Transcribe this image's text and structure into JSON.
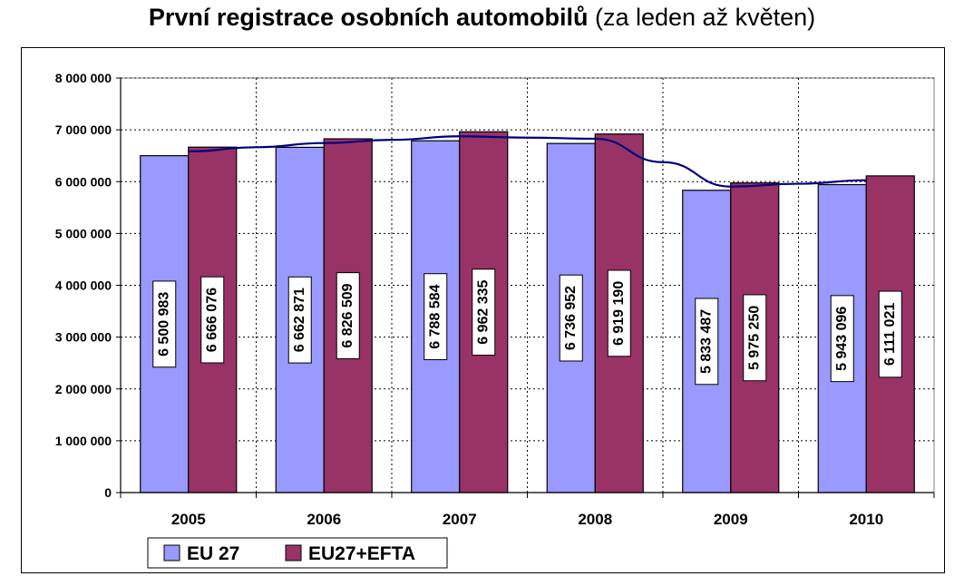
{
  "title_bold": "První registrace osobních automobilů",
  "title_rest": "(za leden až květen)",
  "chart_data": {
    "type": "bar",
    "categories": [
      "2005",
      "2006",
      "2007",
      "2008",
      "2009",
      "2010"
    ],
    "series": [
      {
        "name": "EU 27",
        "color": "#9999ff",
        "values": [
          6500983,
          6662871,
          6788584,
          6736952,
          5833487,
          5943096
        ],
        "labels": [
          "6 500 983",
          "6 662 871",
          "6 788 584",
          "6 736 952",
          "5 833 487",
          "5 943 096"
        ]
      },
      {
        "name": "EU27+EFTA",
        "color": "#993366",
        "values": [
          6666076,
          6826509,
          6962335,
          6919190,
          5975250,
          6111021
        ],
        "labels": [
          "6 666 076",
          "6 826 509",
          "6 962 335",
          "6 919 190",
          "5 975 250",
          "6 111 021"
        ]
      }
    ],
    "trendline": {
      "color": "#000080",
      "type": "moving-average"
    },
    "ylim": [
      0,
      8000000
    ],
    "yticks": [
      {
        "value": 0,
        "label": "0"
      },
      {
        "value": 1000000,
        "label": "1 000 000"
      },
      {
        "value": 2000000,
        "label": "2 000 000"
      },
      {
        "value": 3000000,
        "label": "3 000 000"
      },
      {
        "value": 4000000,
        "label": "4 000 000"
      },
      {
        "value": 5000000,
        "label": "5 000 000"
      },
      {
        "value": 6000000,
        "label": "6 000 000"
      },
      {
        "value": 7000000,
        "label": "7 000 000"
      },
      {
        "value": 8000000,
        "label": "8 000 000"
      }
    ],
    "grid": true,
    "legend_position": "bottom-left"
  }
}
